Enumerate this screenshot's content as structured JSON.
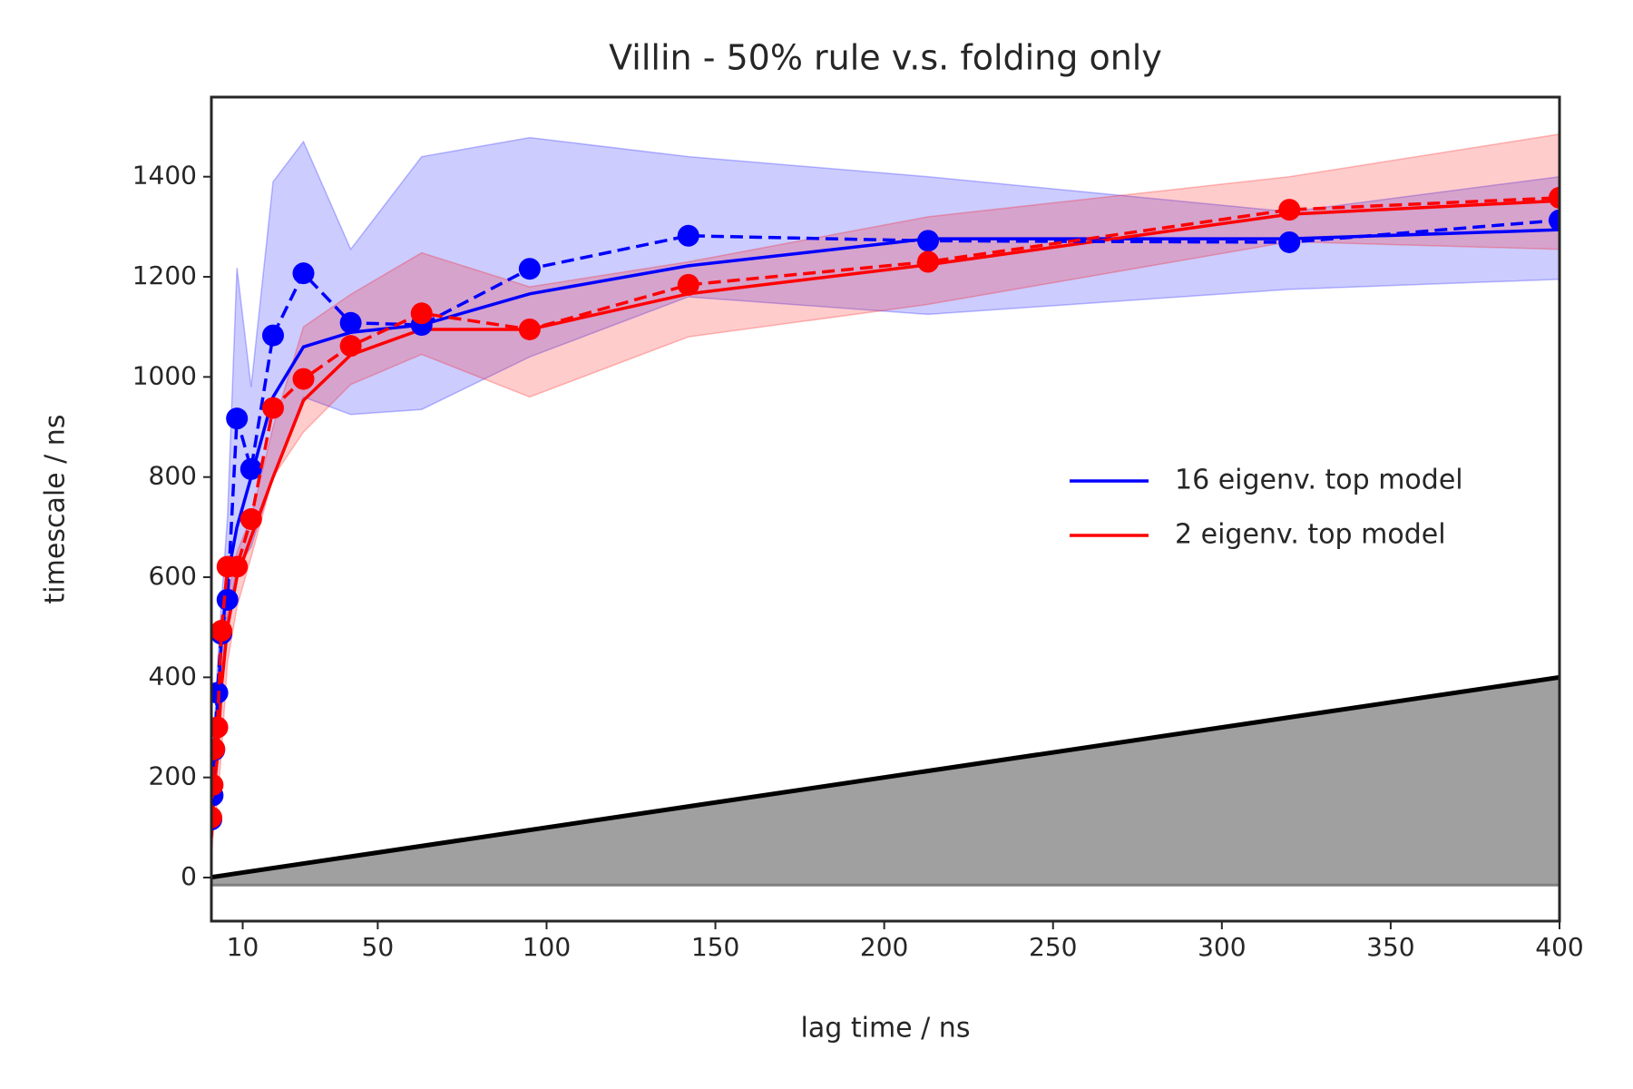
{
  "chart_data": {
    "type": "line",
    "title": "Villin - 50% rule v.s. folding only",
    "x_label": "lag time / ns",
    "y_label": "timescale / ns",
    "x": [
      0.73,
      1.1,
      1.6,
      2.5,
      3.7,
      5.5,
      8.3,
      12.5,
      19,
      28,
      42,
      63,
      95,
      142,
      213,
      320,
      400
    ],
    "series": [
      {
        "name": "16 eigenv. top model",
        "color": "#0000ff",
        "style": "solid",
        "values": [
          100,
          150,
          230,
          340,
          470,
          600,
          700,
          800,
          960,
          1060,
          1089,
          1104,
          1166,
          1222,
          1276,
          1276,
          1294
        ],
        "band_upper": [
          150,
          220,
          300,
          420,
          550,
          720,
          1218,
          980,
          1390,
          1470,
          1255,
          1440,
          1478,
          1440,
          1400,
          1330,
          1400
        ],
        "band_lower": [
          60,
          100,
          160,
          250,
          360,
          520,
          620,
          660,
          800,
          960,
          925,
          935,
          1040,
          1160,
          1125,
          1175,
          1195
        ]
      },
      {
        "name": "2 eigenv. top model",
        "color": "#ff0000",
        "style": "solid",
        "values": [
          80,
          120,
          180,
          240,
          380,
          500,
          600,
          680,
          800,
          953,
          1044,
          1095,
          1095,
          1166,
          1224,
          1325,
          1352
        ],
        "band_upper": [
          100,
          150,
          220,
          280,
          400,
          560,
          650,
          720,
          900,
          1100,
          1165,
          1248,
          1180,
          1230,
          1320,
          1400,
          1485
        ],
        "band_lower": [
          40,
          70,
          110,
          150,
          250,
          430,
          540,
          640,
          800,
          890,
          985,
          1045,
          960,
          1080,
          1145,
          1270,
          1255
        ]
      },
      {
        "color": "#0000ff",
        "style": "dashed",
        "markers": true,
        "values": [
          116,
          164,
          255,
          369,
          487,
          555,
          917,
          816,
          1083,
          1207,
          1108,
          1104,
          1216,
          1282,
          1272,
          1269,
          1313
        ]
      },
      {
        "color": "#ff0000",
        "style": "dashed",
        "markers": true,
        "values": [
          120,
          185,
          257,
          300,
          493,
          621,
          621,
          716,
          938,
          996,
          1062,
          1127,
          1095,
          1184,
          1230,
          1334,
          1358
        ]
      }
    ],
    "reference": {
      "x": [
        0.73,
        400
      ],
      "values": [
        0.73,
        400
      ],
      "color": "#000000",
      "fill": "#a0a0a0",
      "fill_to": -15
    },
    "xlim": [
      0.73,
      400
    ],
    "ylim": [
      -87,
      1559
    ],
    "xticks": [
      10,
      50,
      100,
      150,
      200,
      250,
      300,
      350,
      400
    ],
    "yticks": [
      0,
      200,
      400,
      600,
      800,
      1000,
      1200,
      1400
    ],
    "grid": false,
    "legend": "center right"
  }
}
